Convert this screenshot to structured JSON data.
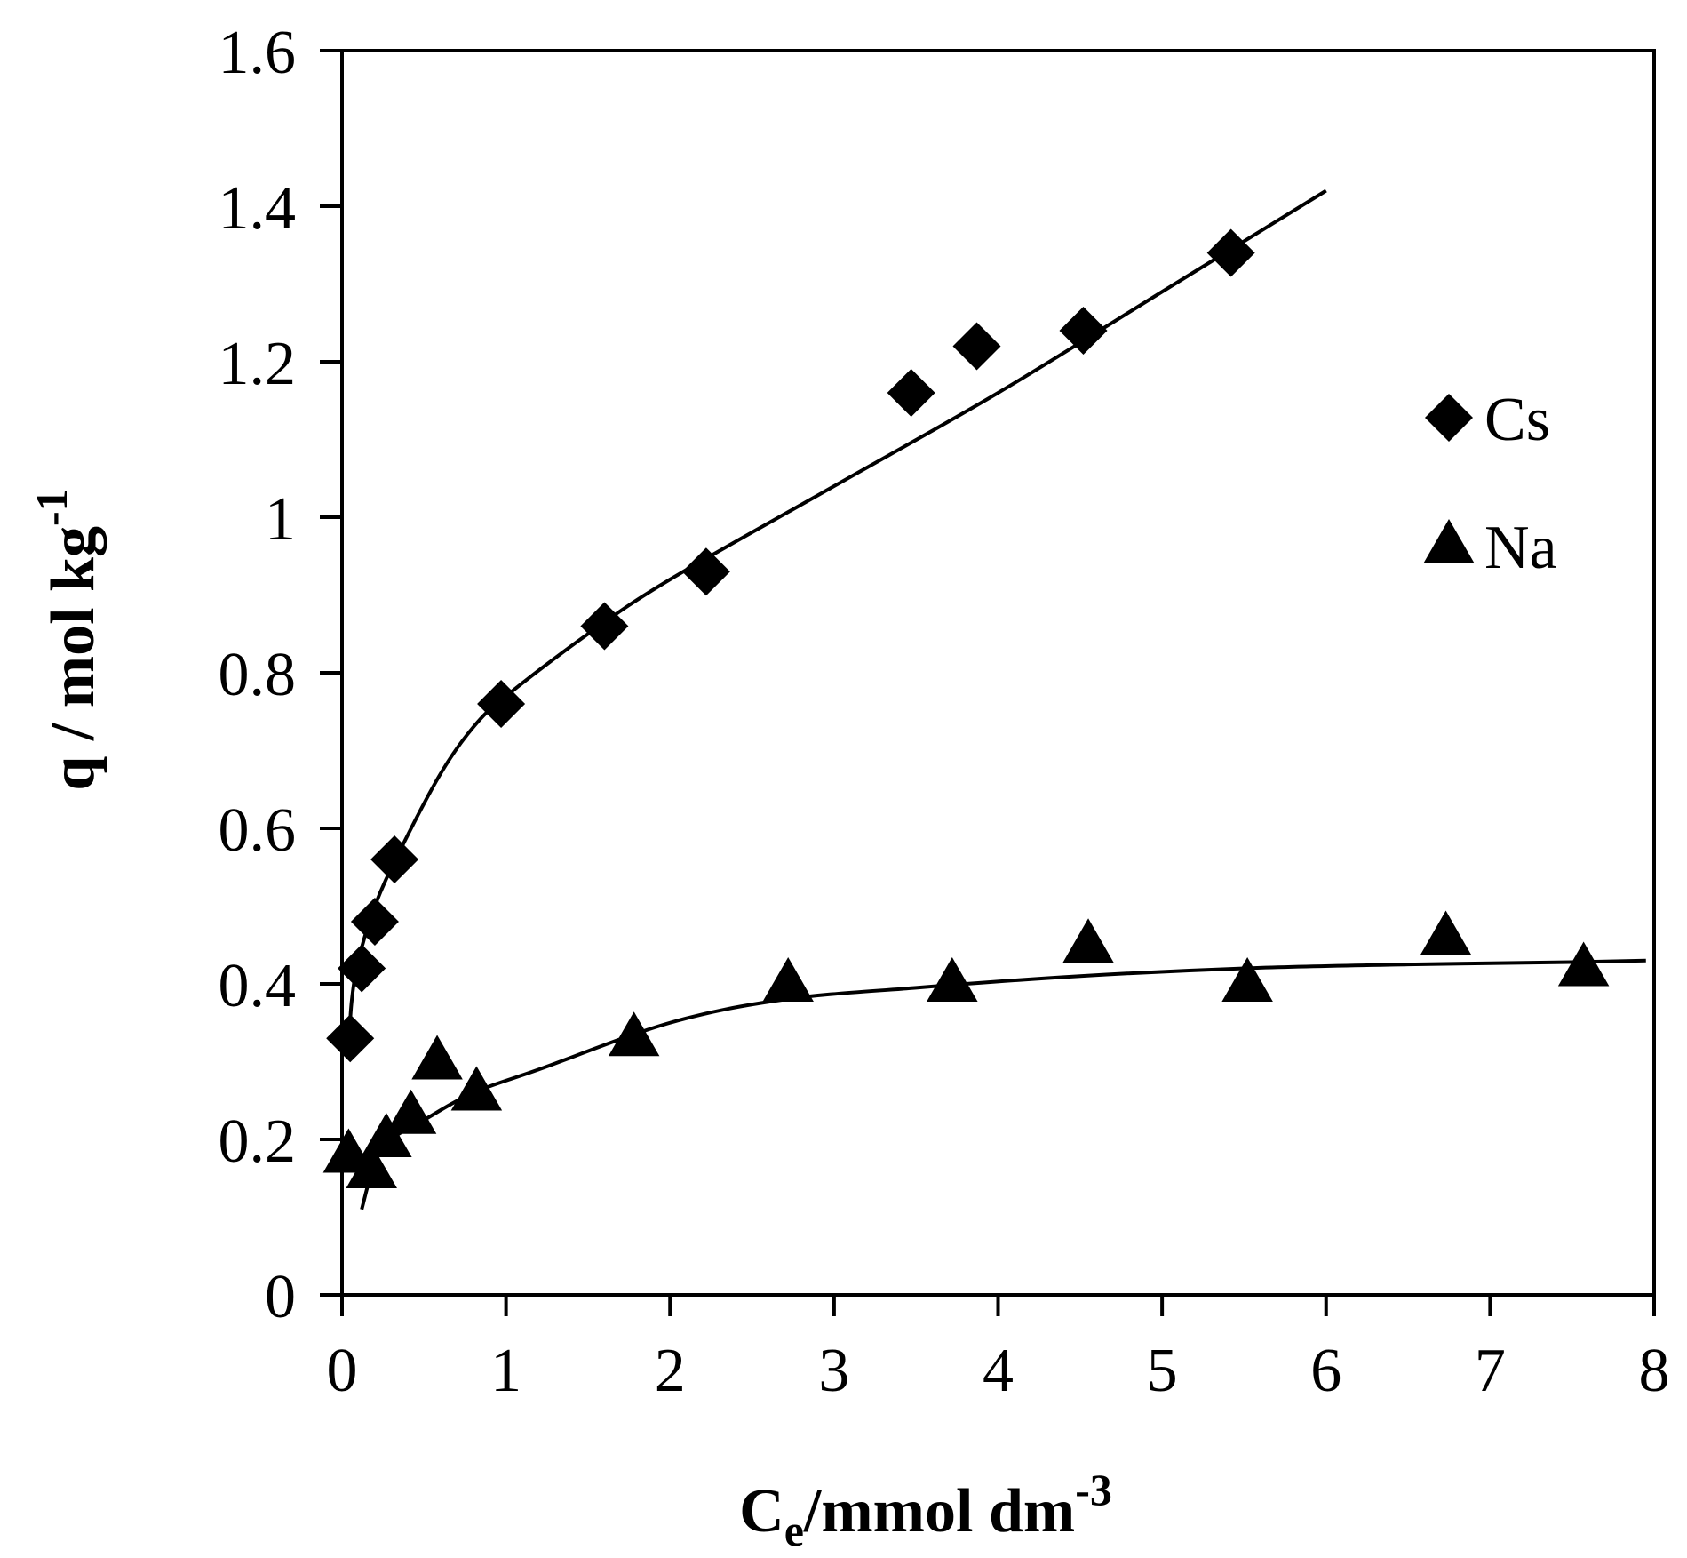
{
  "chart_data": {
    "type": "scatter",
    "xlabel": "Ce/mmol dm-3",
    "ylabel": "q / mol kg-1",
    "xlabel_parts": {
      "main": "C",
      "sub": "e",
      "rest": "/mmol dm",
      "sup": "-3"
    },
    "ylabel_parts": {
      "main": "q / mol kg",
      "sup": "-1"
    },
    "xlim": [
      0,
      8
    ],
    "ylim": [
      0,
      1.6
    ],
    "x_ticks": [
      0,
      1,
      2,
      3,
      4,
      5,
      6,
      7,
      8
    ],
    "x_tick_labels": [
      "0",
      "1",
      "2",
      "3",
      "4",
      "5",
      "6",
      "7",
      "8"
    ],
    "y_ticks": [
      0,
      0.2,
      0.4,
      0.6,
      0.8,
      1.0,
      1.2,
      1.4,
      1.6
    ],
    "y_tick_labels": [
      "0",
      "0.2",
      "0.4",
      "0.6",
      "0.8",
      "1",
      "1.2",
      "1.4",
      "1.6"
    ],
    "grid": false,
    "legend_position": "right-center",
    "series": [
      {
        "name": "Cs",
        "marker": "diamond",
        "color": "#000000",
        "points": [
          [
            0.05,
            0.33
          ],
          [
            0.12,
            0.42
          ],
          [
            0.2,
            0.48
          ],
          [
            0.32,
            0.56
          ],
          [
            0.97,
            0.76
          ],
          [
            1.6,
            0.86
          ],
          [
            2.22,
            0.93
          ],
          [
            3.47,
            1.16
          ],
          [
            3.87,
            1.22
          ],
          [
            4.52,
            1.24
          ],
          [
            5.42,
            1.34
          ]
        ],
        "fit": [
          [
            0.04,
            0.32
          ],
          [
            0.06,
            0.38
          ],
          [
            0.1,
            0.43
          ],
          [
            0.2,
            0.5
          ],
          [
            0.35,
            0.57
          ],
          [
            0.6,
            0.67
          ],
          [
            0.8,
            0.73
          ],
          [
            1.0,
            0.77
          ],
          [
            1.5,
            0.85
          ],
          [
            2.0,
            0.92
          ],
          [
            3.0,
            1.04
          ],
          [
            4.0,
            1.16
          ],
          [
            5.0,
            1.29
          ],
          [
            6.0,
            1.42
          ]
        ]
      },
      {
        "name": "Na",
        "marker": "triangle",
        "color": "#000000",
        "points": [
          [
            0.04,
            0.18
          ],
          [
            0.18,
            0.16
          ],
          [
            0.27,
            0.2
          ],
          [
            0.42,
            0.23
          ],
          [
            0.58,
            0.3
          ],
          [
            0.82,
            0.26
          ],
          [
            1.78,
            0.33
          ],
          [
            2.72,
            0.4
          ],
          [
            3.72,
            0.4
          ],
          [
            4.55,
            0.45
          ],
          [
            5.52,
            0.4
          ],
          [
            6.73,
            0.46
          ],
          [
            7.57,
            0.42
          ]
        ],
        "fit": [
          [
            0.12,
            0.11
          ],
          [
            0.2,
            0.17
          ],
          [
            0.3,
            0.2
          ],
          [
            0.5,
            0.225
          ],
          [
            0.8,
            0.26
          ],
          [
            1.2,
            0.29
          ],
          [
            2.0,
            0.35
          ],
          [
            2.7,
            0.38
          ],
          [
            3.5,
            0.395
          ],
          [
            4.5,
            0.41
          ],
          [
            5.5,
            0.42
          ],
          [
            6.5,
            0.425
          ],
          [
            7.5,
            0.428
          ],
          [
            7.95,
            0.43
          ]
        ]
      }
    ]
  }
}
